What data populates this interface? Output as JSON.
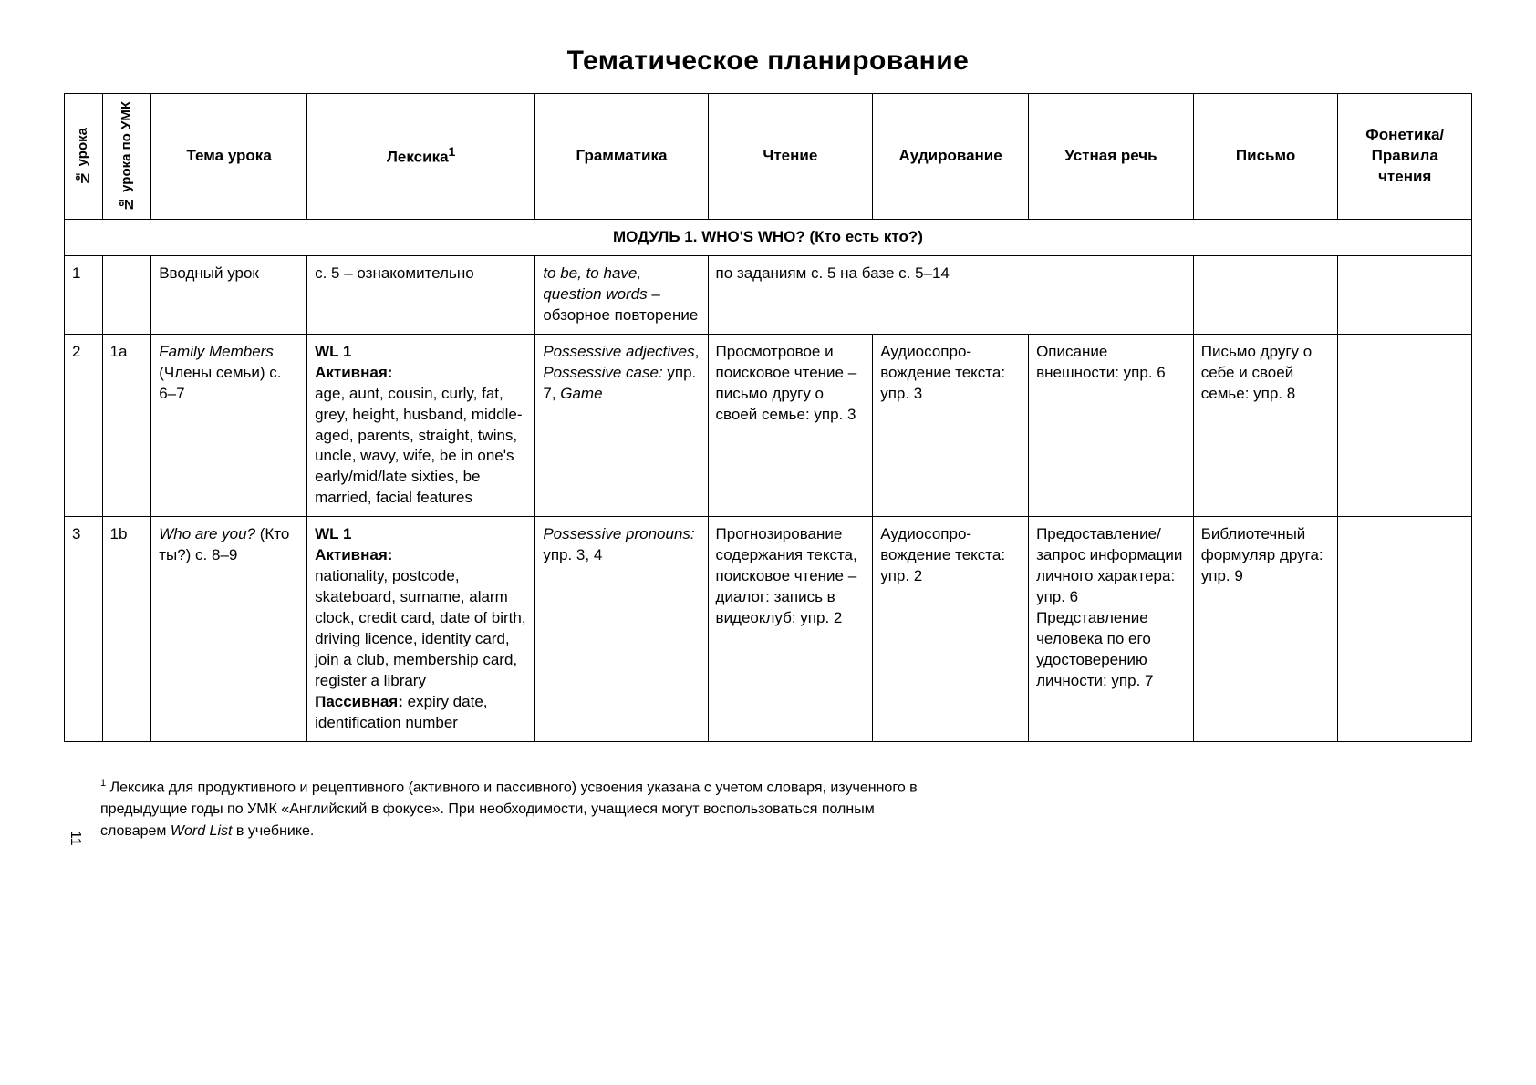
{
  "title": "Тематическое планирование",
  "headers": {
    "lesson_no": "№ урока",
    "umk_no": "№ урока по УМК",
    "topic": "Тема урока",
    "lexis": "Лексика",
    "lexis_sup": "1",
    "grammar": "Грамматика",
    "reading": "Чтение",
    "listening": "Аудирование",
    "speaking": "Устная речь",
    "writing": "Письмо",
    "phonetics": "Фонетика/ Правила чтения"
  },
  "module_row": "МОДУЛЬ 1. WHO'S WHO? (Кто есть кто?)",
  "rows": {
    "r1": {
      "num": "1",
      "umk": "",
      "topic": "Вводный урок",
      "lex_plain": "с. 5 – ознакомительно",
      "gram_em": "to be, to have, question words",
      "gram_tail": " – обзорное повто­рение",
      "read_span": "по заданиям с. 5 на базе с. 5–14"
    },
    "r2": {
      "num": "2",
      "umk": "1a",
      "topic_em": "Family Members",
      "topic_tail": " (Члены семьи) с. 6–7",
      "lex_b1": "WL 1",
      "lex_b2": "Активная:",
      "lex_body": "age, aunt, cousin, curly, fat, grey, height, husband, middle-aged, parents, straight, twins, uncle, wavy, wife, be in one's early/mid/late sixties, be married, facial fea­tures",
      "gram_em1": "Possessive adjectives",
      "gram_mid": ", ",
      "gram_em2": "Possessive case:",
      "gram_tail": " упр. 7, ",
      "gram_em3": "Game",
      "read": "Просмотровое и поисковое чтение – письмо другу о своей семье: упр. 3",
      "listen": "Аудиосопро­вождение текста: упр. 3",
      "speak": "Описание внешности: упр. 6",
      "write": "Письмо другу о себе и своей семье: упр. 8"
    },
    "r3": {
      "num": "3",
      "umk": "1b",
      "topic_em": "Who are you?",
      "topic_tail": " (Кто ты?) с. 8–9",
      "lex_b1": "WL 1",
      "lex_b2": "Активная:",
      "lex_body": "nationality, postcode, skateboard, surname, alarm clock, credit card, date of birth, driving licence, identity card, join a club, membership card, register a library",
      "lex_b3": "Пассивная:",
      "lex_tail": " expiry date, identification number",
      "gram_em": "Possessive pronouns:",
      "gram_tail": " упр. 3, 4",
      "read": "Прогнозирова­ние содержа­ния текста, поисковое чтение – диа­лог: запись в видеоклуб: упр. 2",
      "listen": "Аудиосопро­вождение текста: упр. 2",
      "speak": "Предоставле­ние/запрос информации личного харак­тера: упр. 6 Представление человека по его удостове­рению личнос­ти: упр. 7",
      "write": "Библиотеч­ный формуляр друга: упр. 9"
    }
  },
  "footnote": {
    "sup": "1",
    "text_a": " Лексика для продуктивного и рецептивного (активного и пассивного) усвоения указана с учетом словаря, изученного в предыдущие годы по УМК «Английский в фокусе». При необходимости, учащиеся могут воспользоваться полным словарем ",
    "text_em": "Word List",
    "text_b": " в учебнике."
  },
  "page_num": "11"
}
